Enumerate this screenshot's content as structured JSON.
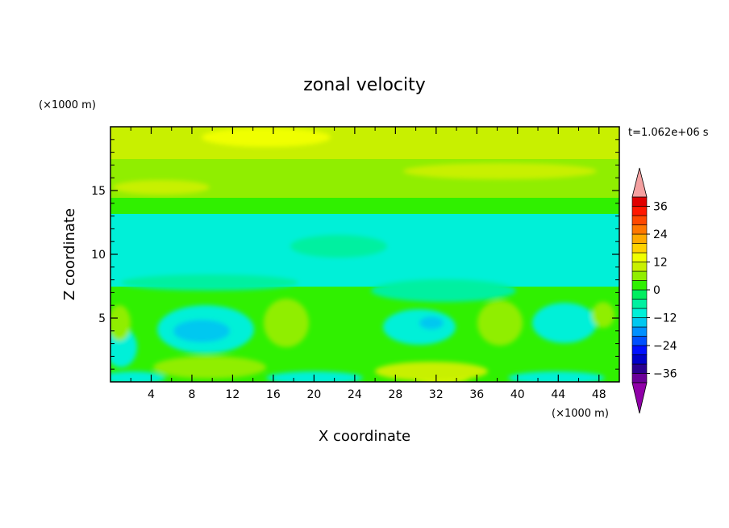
{
  "chart_data": {
    "type": "heatmap",
    "title": "zonal velocity",
    "xlabel": "X coordinate",
    "ylabel": "Z coordinate",
    "x_unit": "(×1000 m)",
    "y_unit": "(×1000 m)",
    "time_label": "t=1.062e+06 s",
    "xlim": [
      0,
      50
    ],
    "ylim": [
      0,
      20
    ],
    "x_ticks": [
      4,
      8,
      12,
      16,
      20,
      24,
      28,
      32,
      36,
      40,
      44,
      48
    ],
    "y_ticks": [
      5,
      10,
      15
    ],
    "colorbar": {
      "levels": [
        -40,
        -36,
        -32,
        -28,
        -24,
        -20,
        -16,
        -12,
        -8,
        -4,
        0,
        4,
        8,
        12,
        16,
        20,
        24,
        28,
        32,
        36,
        40
      ],
      "tick_labels": [
        "36",
        "24",
        "12",
        "0",
        "-12",
        "-24",
        "-36"
      ],
      "tick_values": [
        36,
        24,
        12,
        0,
        -12,
        -24,
        -36
      ],
      "colors": [
        "#6a0099",
        "#2a0090",
        "#0000c8",
        "#0010ff",
        "#0050ff",
        "#0090ff",
        "#00c8f0",
        "#00f0d8",
        "#00f0a0",
        "#00ee60",
        "#30f000",
        "#90ee00",
        "#c8f000",
        "#f0ff00",
        "#ffd200",
        "#ffaa00",
        "#ff7800",
        "#ff4800",
        "#ff1800",
        "#e00000"
      ],
      "over_color": "#f4a0a0",
      "under_color": "#9000a8"
    }
  }
}
